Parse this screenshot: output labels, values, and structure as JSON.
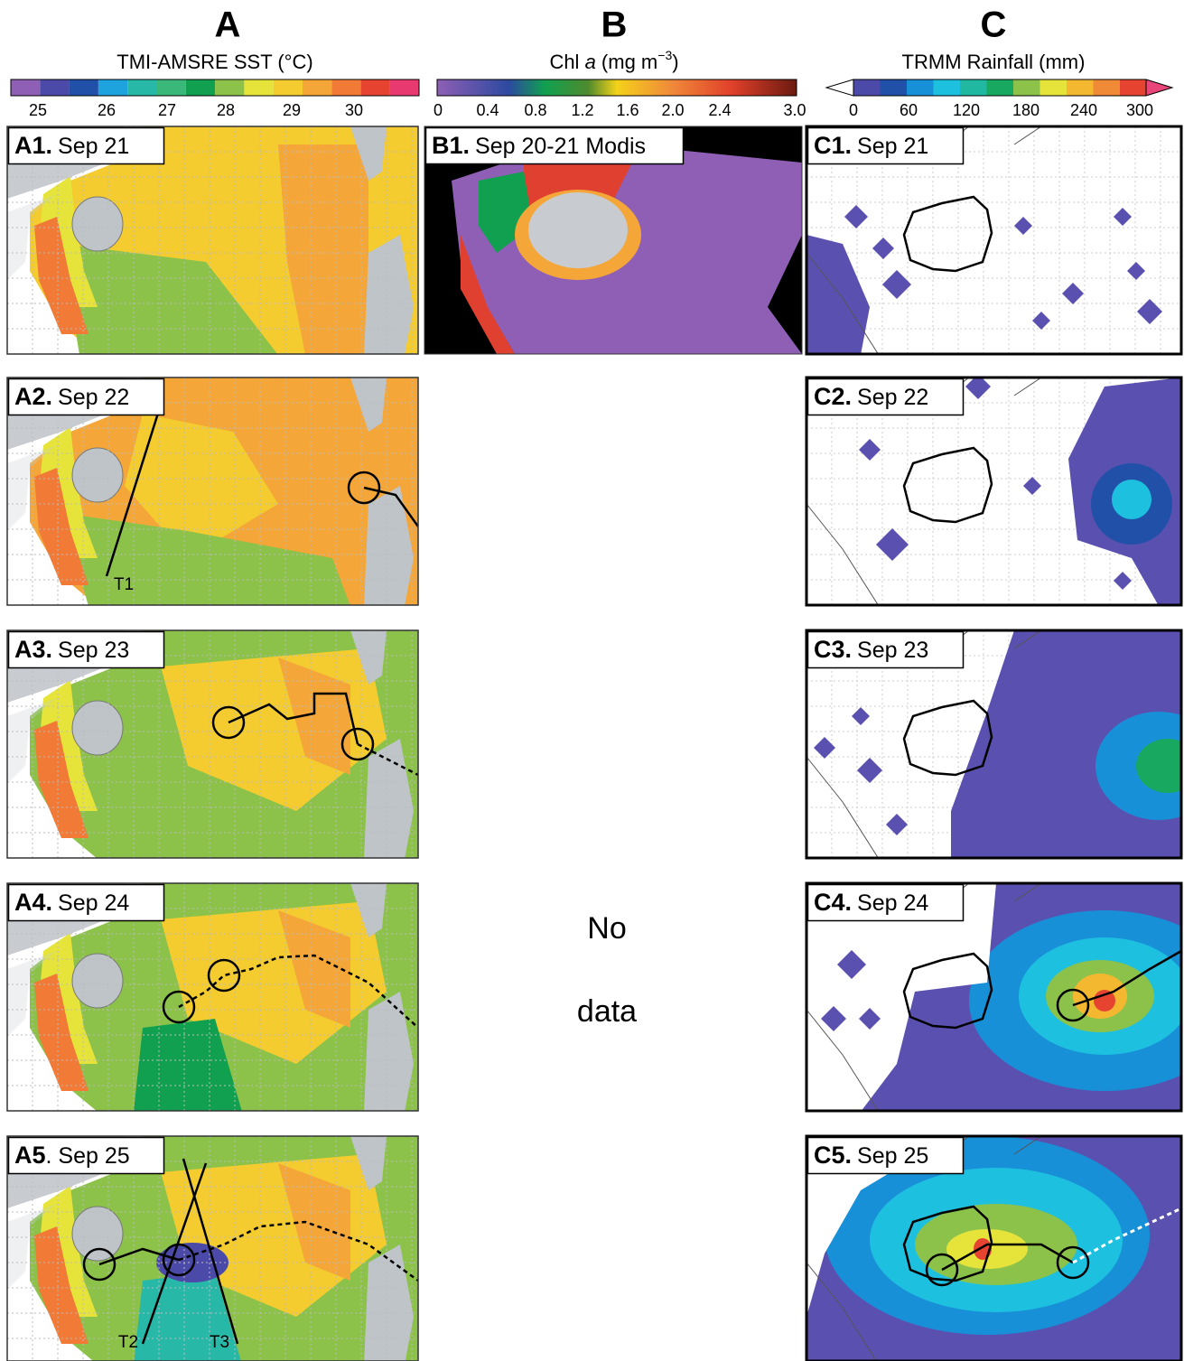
{
  "columns": [
    {
      "letter": "A",
      "title": "TMI-AMSRE SST (°C)",
      "ticks": [
        "25",
        "26",
        "27",
        "28",
        "29",
        "30"
      ]
    },
    {
      "letter": "B",
      "title_parts": [
        "Chl ",
        "a",
        " (mg m",
        "−3",
        ")"
      ],
      "ticks": [
        "0",
        "0.4",
        "0.8",
        "1.2",
        "1.6",
        "2.0",
        "2.4",
        "3.0"
      ]
    },
    {
      "letter": "C",
      "title": "TRMM Rainfall (mm)",
      "ticks": [
        "0",
        "60",
        "120",
        "180",
        "240",
        "300"
      ]
    }
  ],
  "panels": [
    {
      "id": "A1.",
      "date": "Sep 21"
    },
    {
      "id": "B1.",
      "date": "Sep 20-21 Modis"
    },
    {
      "id": "C1.",
      "date": "Sep 21"
    },
    {
      "id": "A2.",
      "date": "Sep 22"
    },
    {
      "id": "C2.",
      "date": "Sep 22"
    },
    {
      "id": "A3.",
      "date": "Sep 23"
    },
    {
      "id": "C3.",
      "date": "Sep 23"
    },
    {
      "id": "A4.",
      "date": "Sep 24"
    },
    {
      "id": "C4.",
      "date": "Sep 24"
    },
    {
      "id": "A5",
      "date": ". Sep 25"
    },
    {
      "id": "C5.",
      "date": "Sep 25"
    }
  ],
  "track_labels": [
    "T1",
    "T2",
    "T3"
  ],
  "no_data": [
    "No",
    "data"
  ]
}
